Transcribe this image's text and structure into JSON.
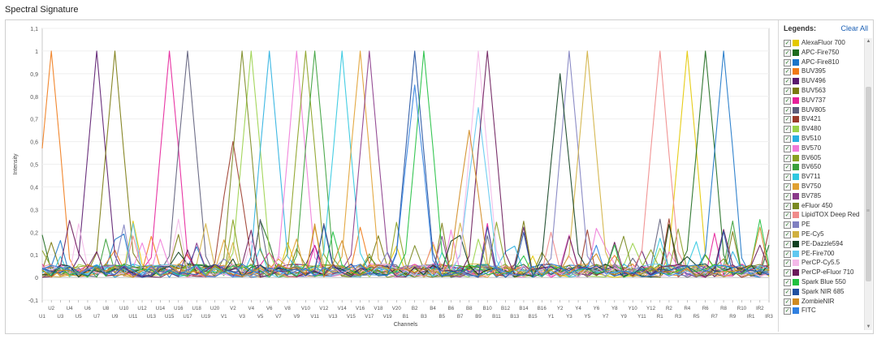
{
  "panel": {
    "title": "Spectral Signature"
  },
  "legend": {
    "title": "Legends:",
    "clear_all": "Clear All"
  },
  "chart_data": {
    "type": "line",
    "xlabel": "Channels",
    "ylabel": "Intensity",
    "ylim": [
      -0.1,
      1.1
    ],
    "yticks": [
      "-0,1",
      "0",
      "0,1",
      "0,2",
      "0,3",
      "0,4",
      "0,5",
      "0,6",
      "0,7",
      "0,8",
      "0,9",
      "1",
      "1,1"
    ],
    "x": [
      "U1",
      "U2",
      "U3",
      "U4",
      "U5",
      "U6",
      "U7",
      "U8",
      "U9",
      "U10",
      "U11",
      "U12",
      "U13",
      "U14",
      "U15",
      "U16",
      "U17",
      "U18",
      "U19",
      "U20",
      "V1",
      "V2",
      "V3",
      "V4",
      "V5",
      "V6",
      "V7",
      "V8",
      "V9",
      "V10",
      "V11",
      "V12",
      "V13",
      "V14",
      "V15",
      "V16",
      "V17",
      "V18",
      "V19",
      "V20",
      "B1",
      "B2",
      "B3",
      "B4",
      "B5",
      "B6",
      "B7",
      "B8",
      "B9",
      "B10",
      "B11",
      "B12",
      "B13",
      "B14",
      "B15",
      "B16",
      "Y1",
      "Y2",
      "Y3",
      "Y4",
      "Y5",
      "Y6",
      "Y7",
      "Y8",
      "Y9",
      "Y10",
      "Y11",
      "Y12",
      "R1",
      "R2",
      "R3",
      "R4",
      "R5",
      "R6",
      "R7",
      "R8",
      "R9",
      "R10",
      "IR1",
      "IR2",
      "IR3"
    ],
    "series": [
      {
        "name": "AlexaFluor 700",
        "color": "#e3c800",
        "peak": "R4",
        "peak_value": 1.0
      },
      {
        "name": "APC-Fire750",
        "color": "#1e6b1e",
        "peak": "R6",
        "peak_value": 1.0
      },
      {
        "name": "APC-Fire810",
        "color": "#1c75c8",
        "peak": "R8",
        "peak_value": 1.0
      },
      {
        "name": "BUV395",
        "color": "#f07a18",
        "peak": "U2",
        "peak_value": 1.0
      },
      {
        "name": "BUV496",
        "color": "#5a1a6e",
        "peak": "U7",
        "peak_value": 1.0
      },
      {
        "name": "BUV563",
        "color": "#7a7a10",
        "peak": "U9",
        "peak_value": 1.0
      },
      {
        "name": "BUV737",
        "color": "#e6209a",
        "peak": "U15",
        "peak_value": 1.0
      },
      {
        "name": "BUV805",
        "color": "#5d5d7a",
        "peak": "U17",
        "peak_value": 1.0
      },
      {
        "name": "BV421",
        "color": "#9b3a2a",
        "peak": "V2",
        "peak_value": 0.6
      },
      {
        "name": "BV480",
        "color": "#9ad24a",
        "peak": "V4",
        "peak_value": 1.0
      },
      {
        "name": "BV510",
        "color": "#2ab0e0",
        "peak": "V6",
        "peak_value": 1.0
      },
      {
        "name": "BV570",
        "color": "#f07ad8",
        "peak": "V9",
        "peak_value": 1.0
      },
      {
        "name": "BV605",
        "color": "#8aa020",
        "peak": "V10",
        "peak_value": 1.0
      },
      {
        "name": "BV650",
        "color": "#3aa03a",
        "peak": "V11",
        "peak_value": 1.0
      },
      {
        "name": "BV711",
        "color": "#30c8e0",
        "peak": "V14",
        "peak_value": 1.0
      },
      {
        "name": "BV750",
        "color": "#e0a030",
        "peak": "V16",
        "peak_value": 1.0
      },
      {
        "name": "BV785",
        "color": "#8a3a8a",
        "peak": "V17",
        "peak_value": 1.0
      },
      {
        "name": "eFluor 450",
        "color": "#7a8a20",
        "peak": "V3",
        "peak_value": 1.0
      },
      {
        "name": "LipidTOX Deep Red",
        "color": "#f08a8a",
        "peak": "R1",
        "peak_value": 1.0
      },
      {
        "name": "PE",
        "color": "#8080c0",
        "peak": "Y3",
        "peak_value": 1.0
      },
      {
        "name": "PE-Cy5",
        "color": "#d0b040",
        "peak": "Y5",
        "peak_value": 1.0
      },
      {
        "name": "PE-Dazzle594",
        "color": "#104020",
        "peak": "Y2",
        "peak_value": 0.9
      },
      {
        "name": "PE-Fire700",
        "color": "#60c8f0",
        "peak": "B9",
        "peak_value": 0.75
      },
      {
        "name": "PerCP-Cy5.5",
        "color": "#f4b8e8",
        "peak": "B9",
        "peak_value": 1.0
      },
      {
        "name": "PerCP-eFluor 710",
        "color": "#6a1a5a",
        "peak": "B10",
        "peak_value": 1.0
      },
      {
        "name": "Spark Blue 550",
        "color": "#20c040",
        "peak": "B3",
        "peak_value": 1.0
      },
      {
        "name": "Spark NIR 685",
        "color": "#2050a0",
        "peak": "B2",
        "peak_value": 1.0
      },
      {
        "name": "ZombieNIR",
        "color": "#d08a20",
        "peak": "B8",
        "peak_value": 0.65
      },
      {
        "name": "FITC",
        "color": "#3080e0",
        "peak": "B2",
        "peak_value": 0.85
      }
    ]
  }
}
